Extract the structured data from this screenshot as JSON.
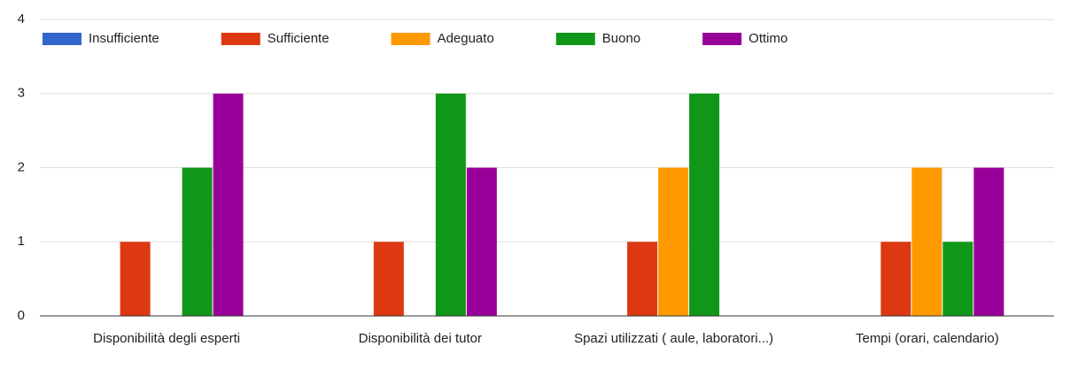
{
  "chart_data": {
    "type": "bar",
    "categories": [
      "Disponibilità degli esperti",
      "Disponibilità dei tutor",
      "Spazi utilizzati ( aule, laboratori...)",
      "Tempi (orari, calendario)"
    ],
    "series": [
      {
        "name": "Insufficiente",
        "color": "#3366cc",
        "values": [
          0,
          0,
          0,
          0
        ]
      },
      {
        "name": "Sufficiente",
        "color": "#dc3912",
        "values": [
          1,
          1,
          1,
          1
        ]
      },
      {
        "name": "Adeguato",
        "color": "#ff9900",
        "values": [
          0,
          0,
          2,
          2
        ]
      },
      {
        "name": "Buono",
        "color": "#109618",
        "values": [
          2,
          3,
          3,
          1
        ]
      },
      {
        "name": "Ottimo",
        "color": "#990099",
        "values": [
          3,
          2,
          0,
          2
        ]
      }
    ],
    "ylim": [
      0,
      4
    ],
    "yticks": [
      0,
      1,
      2,
      3,
      4
    ],
    "grid": true,
    "legend": "top"
  }
}
